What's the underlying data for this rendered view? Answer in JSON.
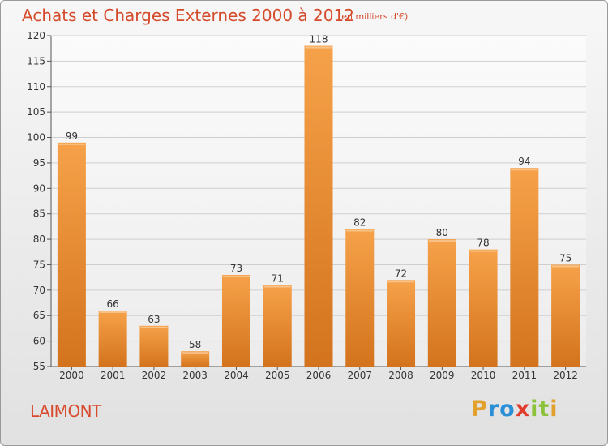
{
  "header": {
    "title": "Achats et Charges Externes 2000 à 2012",
    "unit": "(en milliers d'€)"
  },
  "commune": "LAIMONT",
  "logo": {
    "letters": [
      "P",
      "r",
      "o",
      "x",
      "i",
      "t",
      "i"
    ],
    "colors": [
      "#e2a02c",
      "#2a8fd6",
      "#2a8fd6",
      "#e23c2c",
      "#8cc23a",
      "#8cc23a",
      "#e2a02c"
    ]
  },
  "colors": {
    "bar_top": "#f6a24a",
    "bar_bottom": "#d3731d",
    "grid": "#cfcfcf",
    "title": "#d44a2a"
  },
  "chart_data": {
    "type": "bar",
    "title": "Achats et Charges Externes 2000 à 2012",
    "categories": [
      "2000",
      "2001",
      "2002",
      "2003",
      "2004",
      "2005",
      "2006",
      "2007",
      "2008",
      "2009",
      "2010",
      "2011",
      "2012"
    ],
    "values": [
      99,
      66,
      63,
      58,
      73,
      71,
      118,
      82,
      72,
      80,
      78,
      94,
      75
    ],
    "ylim": [
      55,
      120
    ],
    "yticks": [
      55,
      60,
      65,
      70,
      75,
      80,
      85,
      90,
      95,
      100,
      105,
      110,
      115,
      120
    ],
    "grid": true
  }
}
